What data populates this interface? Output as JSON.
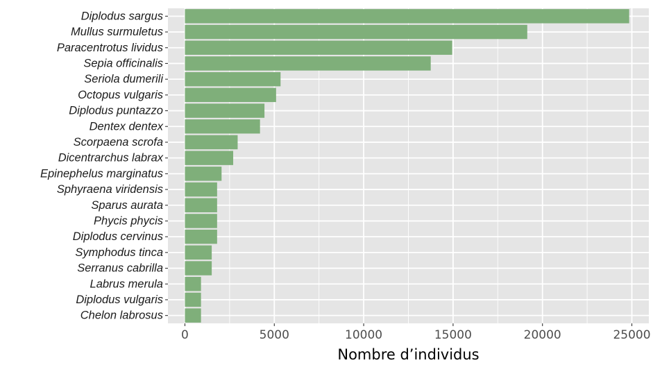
{
  "chart_data": {
    "type": "bar",
    "orientation": "horizontal",
    "categories": [
      "Diplodus sargus",
      "Mullus surmuletus",
      "Paracentrotus lividus",
      "Sepia officinalis",
      "Seriola dumerili",
      "Octopus vulgaris",
      "Diplodus puntazzo",
      "Dentex dentex",
      "Scorpaena scrofa",
      "Dicentrarchus labrax",
      "Epinephelus marginatus",
      "Sphyraena viridensis",
      "Sparus aurata",
      "Phycis phycis",
      "Diplodus cervinus",
      "Symphodus tinca",
      "Serranus cabrilla",
      "Labrus merula",
      "Diplodus vulgaris",
      "Chelon labrosus"
    ],
    "values": [
      24850,
      19150,
      14950,
      13750,
      5350,
      5100,
      4450,
      4200,
      2950,
      2700,
      2050,
      1800,
      1800,
      1800,
      1800,
      1500,
      1500,
      900,
      900,
      900
    ],
    "xlabel": "Nombre d’individus",
    "ylabel": "",
    "title": "",
    "xlim": [
      -950,
      25950
    ],
    "xticks": [
      0,
      5000,
      10000,
      15000,
      20000,
      25000
    ],
    "xtick_labels": [
      "0",
      "5000",
      "10000",
      "15000",
      "20000",
      "25000"
    ],
    "grid": true,
    "bar_color": "#7faf7a",
    "panel_background": "#e5e5e5",
    "grid_color": "#ffffff"
  }
}
